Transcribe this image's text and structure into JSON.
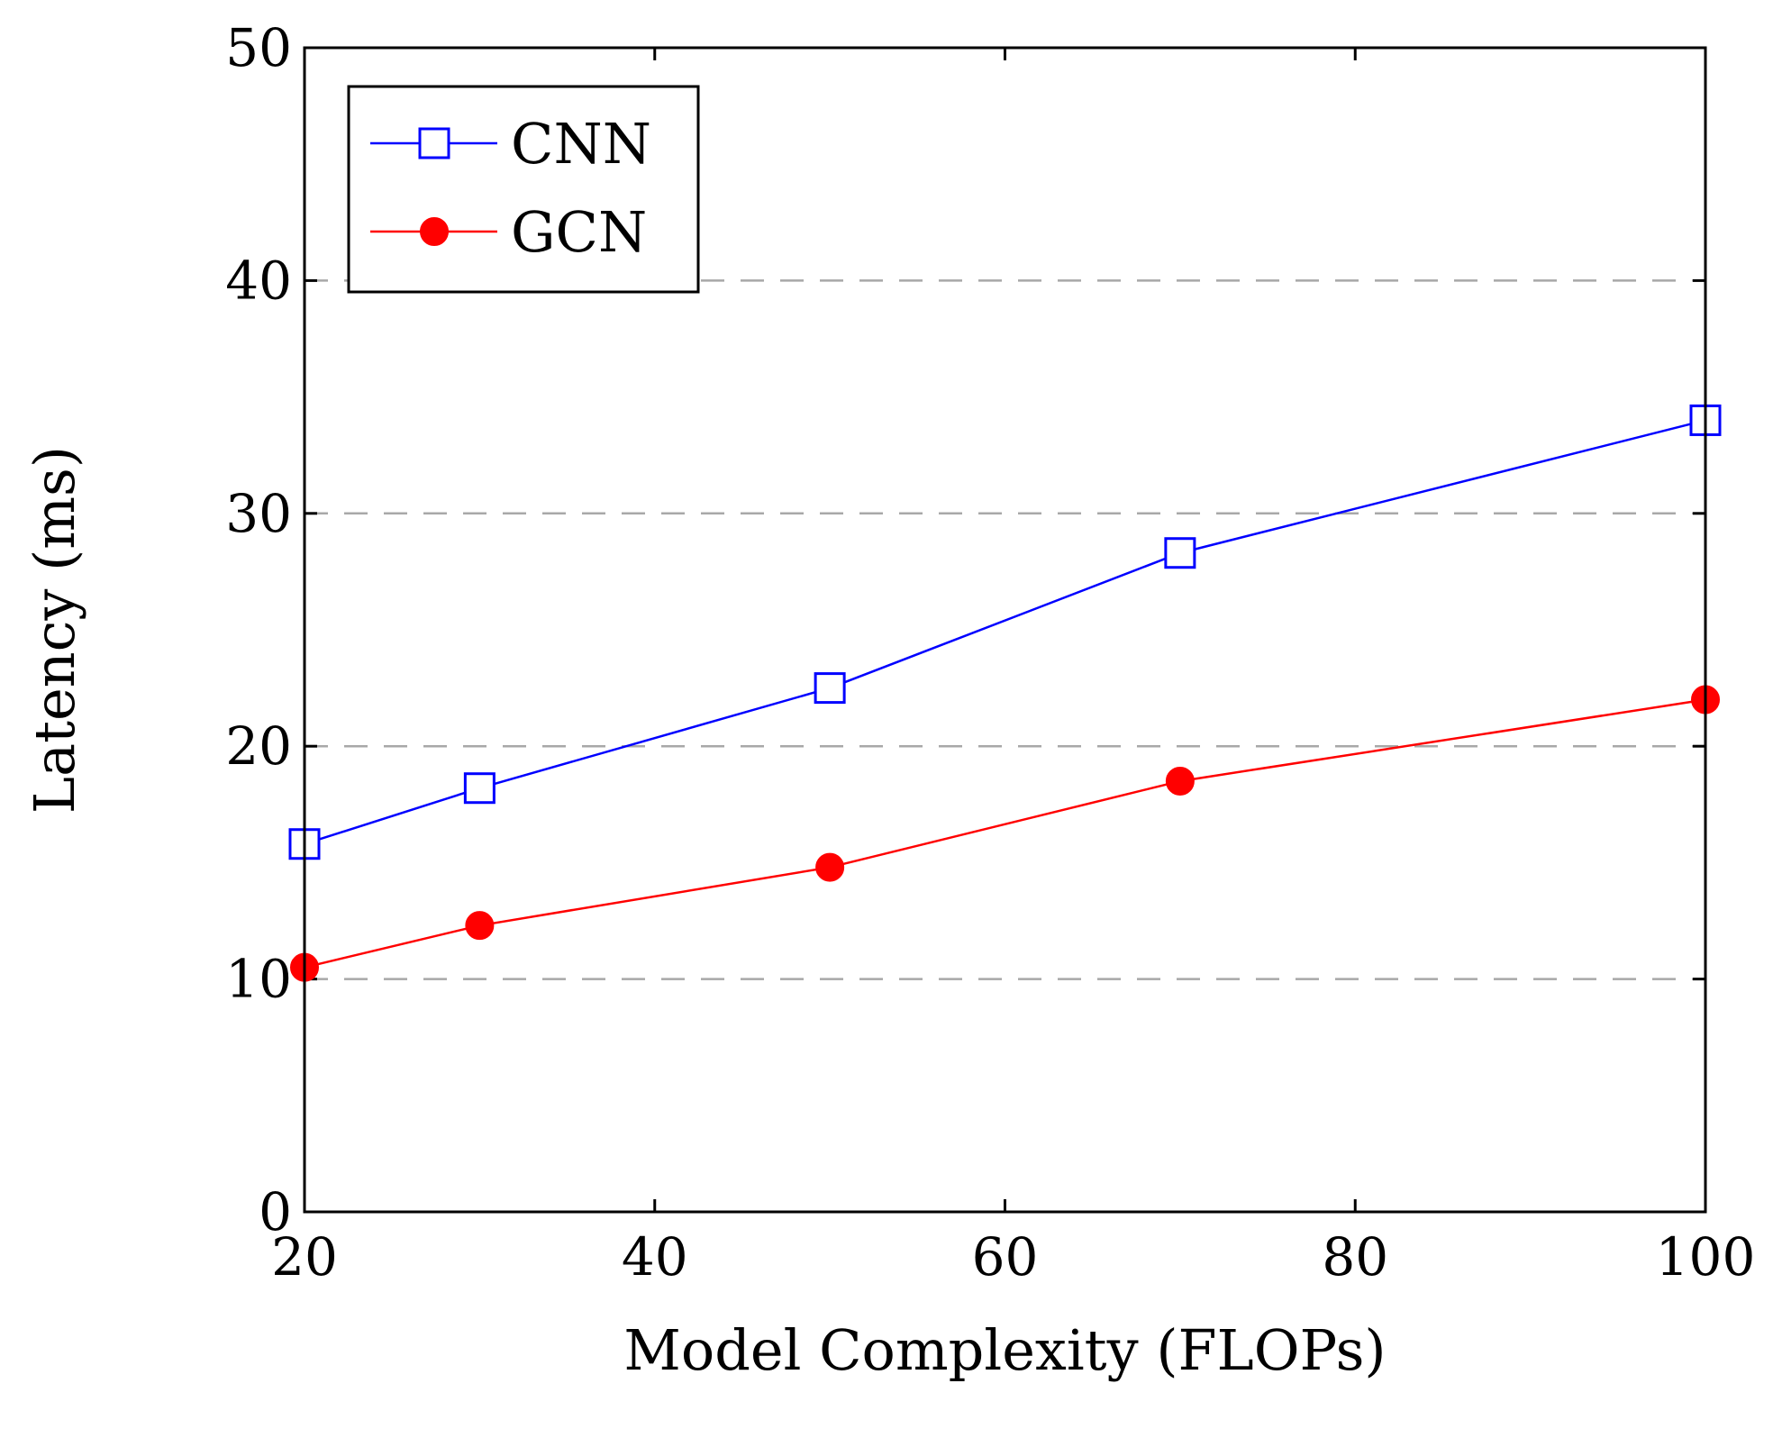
{
  "chart_data": {
    "type": "line",
    "title": "",
    "xlabel": "Model Complexity (FLOPs)",
    "ylabel": "Latency (ms)",
    "xlim": [
      20,
      100
    ],
    "ylim": [
      0,
      50
    ],
    "xticks": [
      20,
      40,
      60,
      80,
      100
    ],
    "yticks": [
      0,
      10,
      20,
      30,
      40,
      50
    ],
    "grid": "horizontal dashed",
    "legend_position": "top-left",
    "series": [
      {
        "name": "CNN",
        "color": "#0000ff",
        "marker": "open-square",
        "x": [
          20,
          30,
          50,
          70,
          100
        ],
        "y": [
          15.8,
          18.2,
          22.5,
          28.3,
          34.0
        ]
      },
      {
        "name": "GCN",
        "color": "#ff0000",
        "marker": "filled-circle",
        "x": [
          20,
          30,
          50,
          70,
          100
        ],
        "y": [
          10.5,
          12.3,
          14.8,
          18.5,
          22.0
        ]
      }
    ]
  }
}
